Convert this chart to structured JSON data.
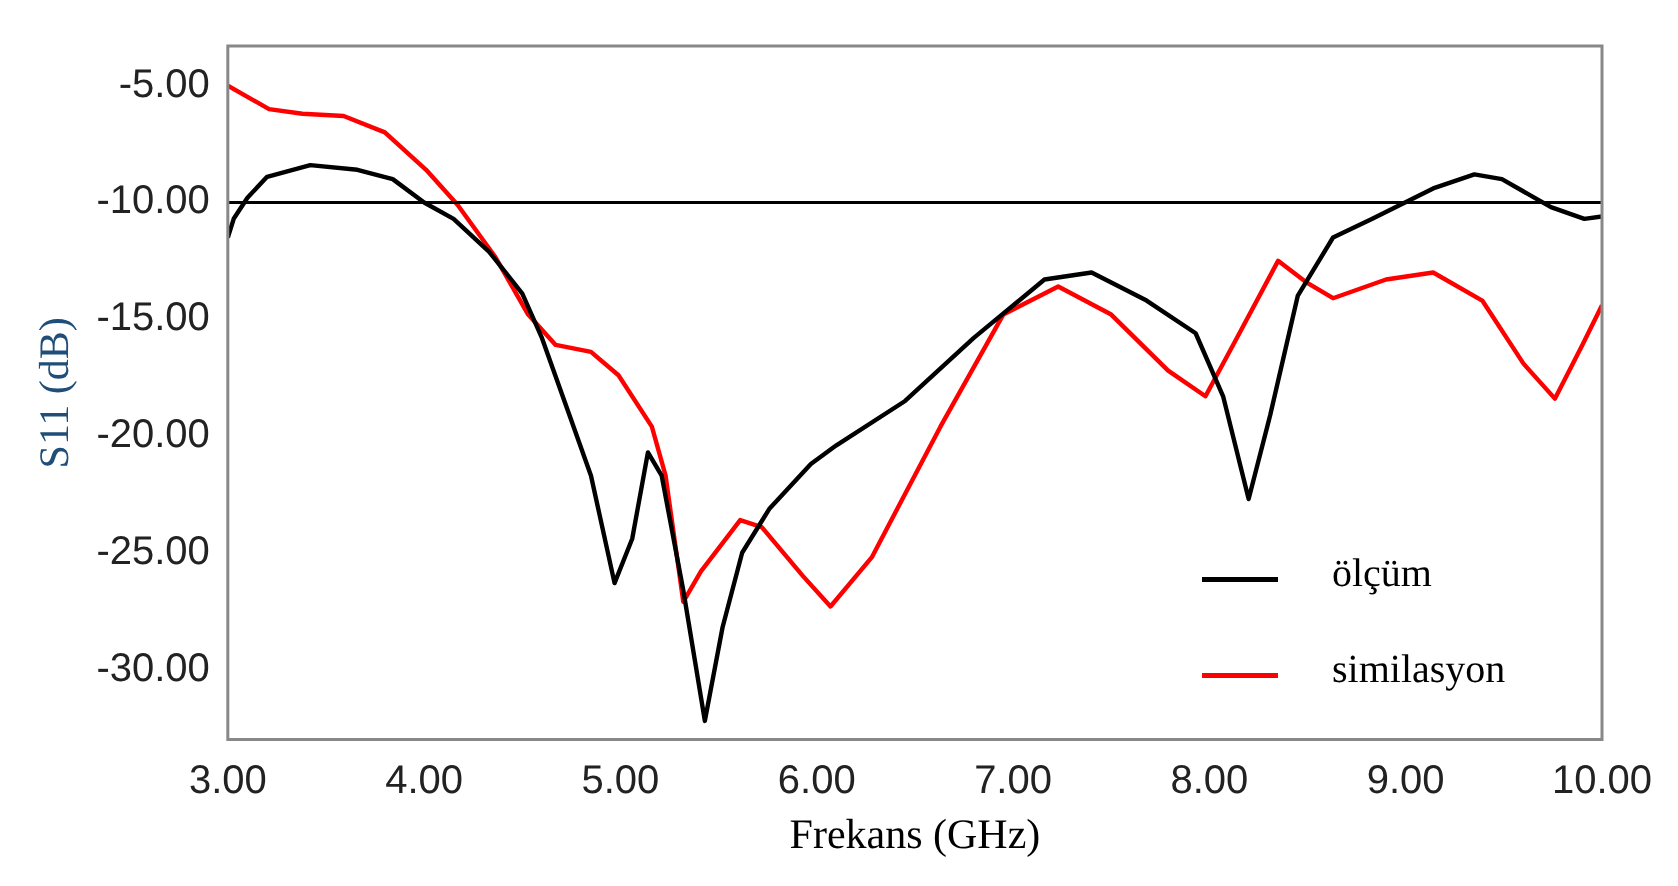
{
  "chart_data": {
    "type": "line",
    "xlabel": "Frekans (GHz)",
    "ylabel": "S11 (dB)",
    "xlim": [
      3,
      10
    ],
    "ylim": [
      -33,
      -3.3
    ],
    "xticks": [
      {
        "value": 3,
        "label": "3.00"
      },
      {
        "value": 4,
        "label": "4.00"
      },
      {
        "value": 5,
        "label": "5.00"
      },
      {
        "value": 6,
        "label": "6.00"
      },
      {
        "value": 7,
        "label": "7.00"
      },
      {
        "value": 8,
        "label": "8.00"
      },
      {
        "value": 9,
        "label": "9.00"
      },
      {
        "value": 10,
        "label": "10.00"
      }
    ],
    "yticks": [
      {
        "value": -5,
        "label": "-5.00"
      },
      {
        "value": -10,
        "label": "-10.00"
      },
      {
        "value": -15,
        "label": "-15.00"
      },
      {
        "value": -20,
        "label": "-20.00"
      },
      {
        "value": -25,
        "label": "-25.00"
      },
      {
        "value": -30,
        "label": "-30.00"
      }
    ],
    "grid": false,
    "legend": "bottom right",
    "marker": "none",
    "line_style": "solid",
    "ref_lines": [
      {
        "axis": "y",
        "value": -10,
        "label": null,
        "color": "#000000"
      }
    ],
    "series": [
      {
        "name": "ölçüm",
        "color": "#000000",
        "x": [
          3.0,
          3.03,
          3.1,
          3.2,
          3.42,
          3.66,
          3.84,
          4.0,
          4.15,
          4.33,
          4.5,
          4.6,
          4.74,
          4.85,
          4.97,
          5.06,
          5.14,
          5.21,
          5.32,
          5.43,
          5.52,
          5.62,
          5.76,
          5.97,
          6.1,
          6.45,
          6.8,
          7.16,
          7.4,
          7.68,
          7.93,
          8.07,
          8.2,
          8.31,
          8.45,
          8.63,
          8.83,
          9.14,
          9.35,
          9.49,
          9.74,
          9.91,
          10.0
        ],
        "values": [
          -11.5,
          -10.7,
          -9.8,
          -8.9,
          -8.4,
          -8.6,
          -9.0,
          -10.0,
          -10.7,
          -12.1,
          -13.9,
          -15.8,
          -19.1,
          -21.7,
          -26.3,
          -24.4,
          -20.7,
          -21.7,
          -26.6,
          -32.2,
          -28.2,
          -25.0,
          -23.1,
          -21.2,
          -20.4,
          -18.5,
          -15.8,
          -13.3,
          -13.0,
          -14.2,
          -15.6,
          -18.3,
          -22.7,
          -19.1,
          -14.0,
          -11.5,
          -10.7,
          -9.4,
          -8.8,
          -9.0,
          -10.2,
          -10.7,
          -10.6
        ]
      },
      {
        "name": "similasyon",
        "color": "#ff0000",
        "x": [
          3.0,
          3.21,
          3.38,
          3.59,
          3.8,
          4.01,
          4.17,
          4.36,
          4.53,
          4.67,
          4.85,
          4.99,
          5.16,
          5.23,
          5.32,
          5.41,
          5.61,
          5.72,
          5.93,
          6.07,
          6.28,
          6.63,
          6.95,
          7.23,
          7.5,
          7.79,
          7.98,
          8.14,
          8.35,
          8.49,
          8.63,
          8.9,
          9.14,
          9.39,
          9.6,
          9.76,
          9.9,
          10.0
        ],
        "values": [
          -5.0,
          -6.0,
          -6.2,
          -6.3,
          -7.0,
          -8.6,
          -10.1,
          -12.3,
          -14.8,
          -16.1,
          -16.4,
          -17.4,
          -19.6,
          -21.7,
          -27.1,
          -25.8,
          -23.6,
          -23.9,
          -26.0,
          -27.3,
          -25.2,
          -19.6,
          -14.8,
          -13.6,
          -14.8,
          -17.2,
          -18.3,
          -15.8,
          -12.5,
          -13.4,
          -14.1,
          -13.3,
          -13.0,
          -14.2,
          -16.9,
          -18.4,
          -16.1,
          -14.4
        ]
      }
    ]
  }
}
